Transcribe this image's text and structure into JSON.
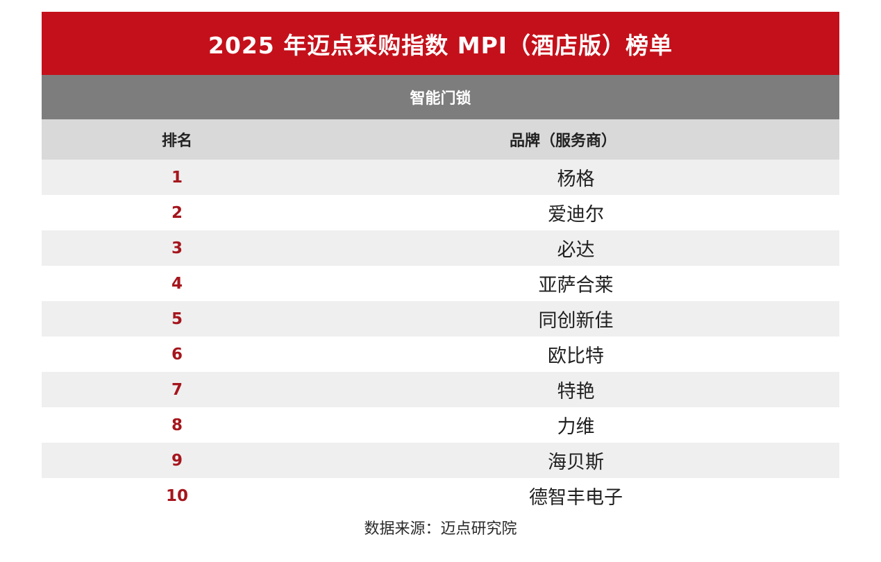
{
  "title": "2025 年迈点采购指数 MPI（酒店版）榜单",
  "category": "智能门锁",
  "headers": {
    "rank": "排名",
    "brand": "品牌（服务商）"
  },
  "rows": [
    {
      "rank": "1",
      "brand": "杨格"
    },
    {
      "rank": "2",
      "brand": "爱迪尔"
    },
    {
      "rank": "3",
      "brand": "必达"
    },
    {
      "rank": "4",
      "brand": "亚萨合莱"
    },
    {
      "rank": "5",
      "brand": "同创新佳"
    },
    {
      "rank": "6",
      "brand": "欧比特"
    },
    {
      "rank": "7",
      "brand": "特艳"
    },
    {
      "rank": "8",
      "brand": "力维"
    },
    {
      "rank": "9",
      "brand": "海贝斯"
    },
    {
      "rank": "10",
      "brand": "德智丰电子"
    }
  ],
  "source": "数据来源：迈点研究院",
  "colors": {
    "title_bg": "#c4101a",
    "category_bg": "#7d7d7d",
    "header_bg": "#d9d9d9",
    "rank_text": "#a5161d"
  }
}
